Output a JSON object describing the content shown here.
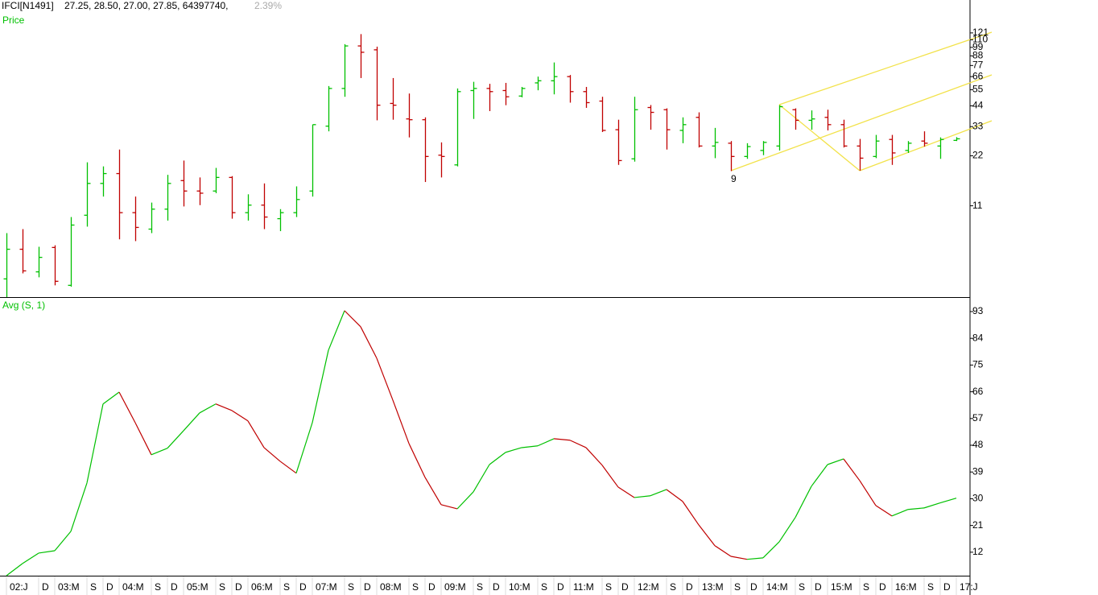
{
  "chart_data": [
    {
      "type": "ohlc",
      "title": "IFCI[N1491]",
      "quote": "27.25, 28.50, 27.00, 27.85, 64397740,",
      "change": "2.39%",
      "label": "Price",
      "annotations": [
        "9"
      ],
      "log_scale": true,
      "up_color": "#00c000",
      "down_color": "#c00000",
      "open": [
        3.99,
        6.02,
        4.4,
        6.17,
        3.65,
        9.65,
        15.0,
        17.2,
        10.0,
        7.96,
        10.5,
        15.6,
        13.5,
        13.5,
        16.3,
        10.0,
        11.1,
        9.2,
        10.0,
        13.5,
        33.2,
        56.0,
        101,
        95.7,
        45.5,
        36.7,
        36.3,
        22.2,
        19.4,
        54.4,
        56.0,
        54.4,
        50.4,
        60.5,
        62.3,
        66.0,
        53.6,
        47.0,
        31.6,
        21.1,
        43.0,
        41.7,
        31.3,
        37.5,
        25.2,
        26.2,
        21.8,
        23.7,
        25.2,
        41.7,
        36.0,
        37.5,
        33.9,
        25.2,
        21.8,
        27.6,
        23.7,
        27.0,
        25.2,
        27.25
      ],
      "high": [
        7.53,
        7.96,
        6.23,
        6.36,
        9.41,
        20.1,
        19.0,
        24.0,
        12.5,
        11.5,
        16.9,
        20.6,
        16.3,
        18.6,
        16.6,
        12.9,
        15.0,
        10.5,
        14.4,
        33.9,
        57.9,
        103.5,
        119,
        100,
        64.7,
        52.2,
        37.5,
        26.5,
        56.0,
        61.4,
        59.7,
        60.5,
        57.2,
        66.0,
        80.3,
        67.5,
        57.2,
        49.9,
        36.3,
        49.9,
        44.5,
        42.5,
        37.5,
        40.2,
        32.4,
        27.0,
        26.2,
        27.0,
        44.4,
        42.5,
        41.3,
        41.7,
        36.3,
        27.8,
        29.4,
        29.4,
        27.0,
        30.9,
        28.4,
        28.5
      ],
      "low": [
        3.1,
        4.31,
        4.08,
        3.65,
        3.58,
        8.24,
        12.5,
        6.91,
        6.74,
        7.53,
        8.96,
        10.9,
        11.1,
        13.1,
        9.2,
        8.96,
        7.96,
        7.74,
        9.41,
        12.5,
        30.9,
        49.9,
        64.7,
        36.0,
        36.3,
        28.4,
        15.3,
        16.3,
        19.0,
        36.7,
        40.9,
        44.4,
        49.5,
        54.6,
        51.6,
        46.0,
        42.8,
        30.6,
        19.4,
        20.3,
        31.6,
        24.0,
        26.2,
        24.7,
        21.3,
        17.8,
        21.1,
        22.2,
        23.7,
        31.6,
        31.6,
        31.3,
        24.7,
        17.9,
        21.3,
        19.4,
        22.9,
        25.0,
        21.1,
        27.0
      ],
      "close": [
        6.02,
        4.46,
        5.38,
        3.86,
        8.42,
        15.0,
        17.2,
        10.0,
        8.15,
        10.5,
        15.0,
        13.5,
        13.1,
        16.3,
        10.0,
        11.1,
        9.41,
        10.0,
        12.0,
        33.9,
        56.0,
        101,
        92.5,
        44.4,
        44.4,
        36.3,
        21.8,
        21.8,
        53.6,
        56.0,
        53.6,
        49.9,
        56.0,
        62.3,
        66.0,
        53.6,
        46.0,
        31.3,
        20.6,
        41.7,
        40.2,
        31.6,
        33.9,
        25.2,
        26.5,
        21.8,
        25.0,
        26.5,
        43.5,
        36.0,
        36.7,
        33.9,
        25.2,
        21.3,
        27.0,
        22.9,
        26.2,
        26.2,
        27.6,
        27.85
      ],
      "ylim": [
        3.1,
        191
      ],
      "yticks": [
        11,
        22,
        33,
        44,
        55,
        66,
        77,
        88,
        99,
        110,
        121
      ]
    },
    {
      "type": "line",
      "title": "Avg (S, 1)",
      "up_color": "#00c000",
      "down_color": "#c00000",
      "categories": [
        "02:J",
        null,
        "D",
        "03:M",
        null,
        "S",
        "D",
        "04:M",
        null,
        "S",
        "D",
        "05:M",
        null,
        "S",
        "D",
        "06:M",
        null,
        "S",
        "D",
        "07:M",
        null,
        "S",
        "D",
        "08:M",
        null,
        "S",
        "D",
        "09:M",
        null,
        "S",
        "D",
        "10:M",
        null,
        "S",
        "D",
        "11:M",
        null,
        "S",
        "D",
        "12:M",
        null,
        "S",
        "D",
        "13:M",
        null,
        "S",
        "D",
        "14:M",
        null,
        "S",
        "D",
        "15:M",
        null,
        "S",
        "D",
        "16:M",
        null,
        "S",
        "D",
        "17:J"
      ],
      "values": [
        4.1,
        8.2,
        11.7,
        12.5,
        19.0,
        35.3,
        61.9,
        65.9,
        55.6,
        44.8,
        47.0,
        52.9,
        58.9,
        61.9,
        59.7,
        56.2,
        47.2,
        42.6,
        38.6,
        55.6,
        80.0,
        93.3,
        87.9,
        77.3,
        63.2,
        48.6,
        37.2,
        28.0,
        26.6,
        32.3,
        41.5,
        45.6,
        47.2,
        47.8,
        50.2,
        49.7,
        47.2,
        41.3,
        33.9,
        30.4,
        31.0,
        33.1,
        29.1,
        21.2,
        14.2,
        10.6,
        9.6,
        10.1,
        15.5,
        23.7,
        34.2,
        41.5,
        43.4,
        36.1,
        27.7,
        24.2,
        26.4,
        26.9,
        28.6,
        30.2
      ],
      "ylim": [
        4.1,
        97.6
      ],
      "yticks": [
        12,
        21,
        30,
        39,
        48,
        57,
        66,
        75,
        84,
        93
      ]
    }
  ]
}
